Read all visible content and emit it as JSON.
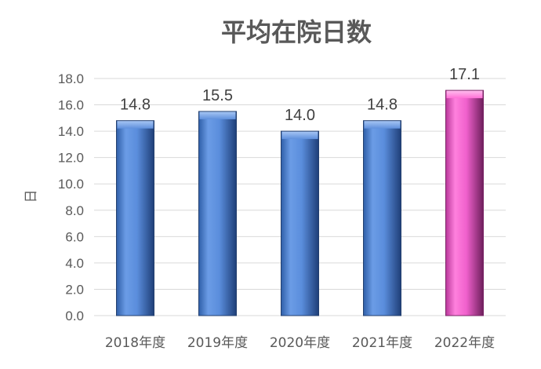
{
  "chart_data": {
    "type": "bar",
    "title": "平均在院日数",
    "ylabel": "日",
    "xlabel": "",
    "categories": [
      "2018年度",
      "2019年度",
      "2020年度",
      "2021年度",
      "2022年度"
    ],
    "values": [
      14.8,
      15.5,
      14.0,
      14.8,
      17.1
    ],
    "value_labels": [
      "14.8",
      "15.5",
      "14.0",
      "14.8",
      "17.1"
    ],
    "ylim": [
      0,
      18
    ],
    "yticks": [
      "0.0",
      "2.0",
      "4.0",
      "6.0",
      "8.0",
      "10.0",
      "12.0",
      "14.0",
      "16.0",
      "18.0"
    ],
    "grid": true,
    "legend": "none",
    "colors": {
      "default_bar": "#4f86d8",
      "highlight_bar": "#ff66cc",
      "highlight_index": 4
    }
  }
}
